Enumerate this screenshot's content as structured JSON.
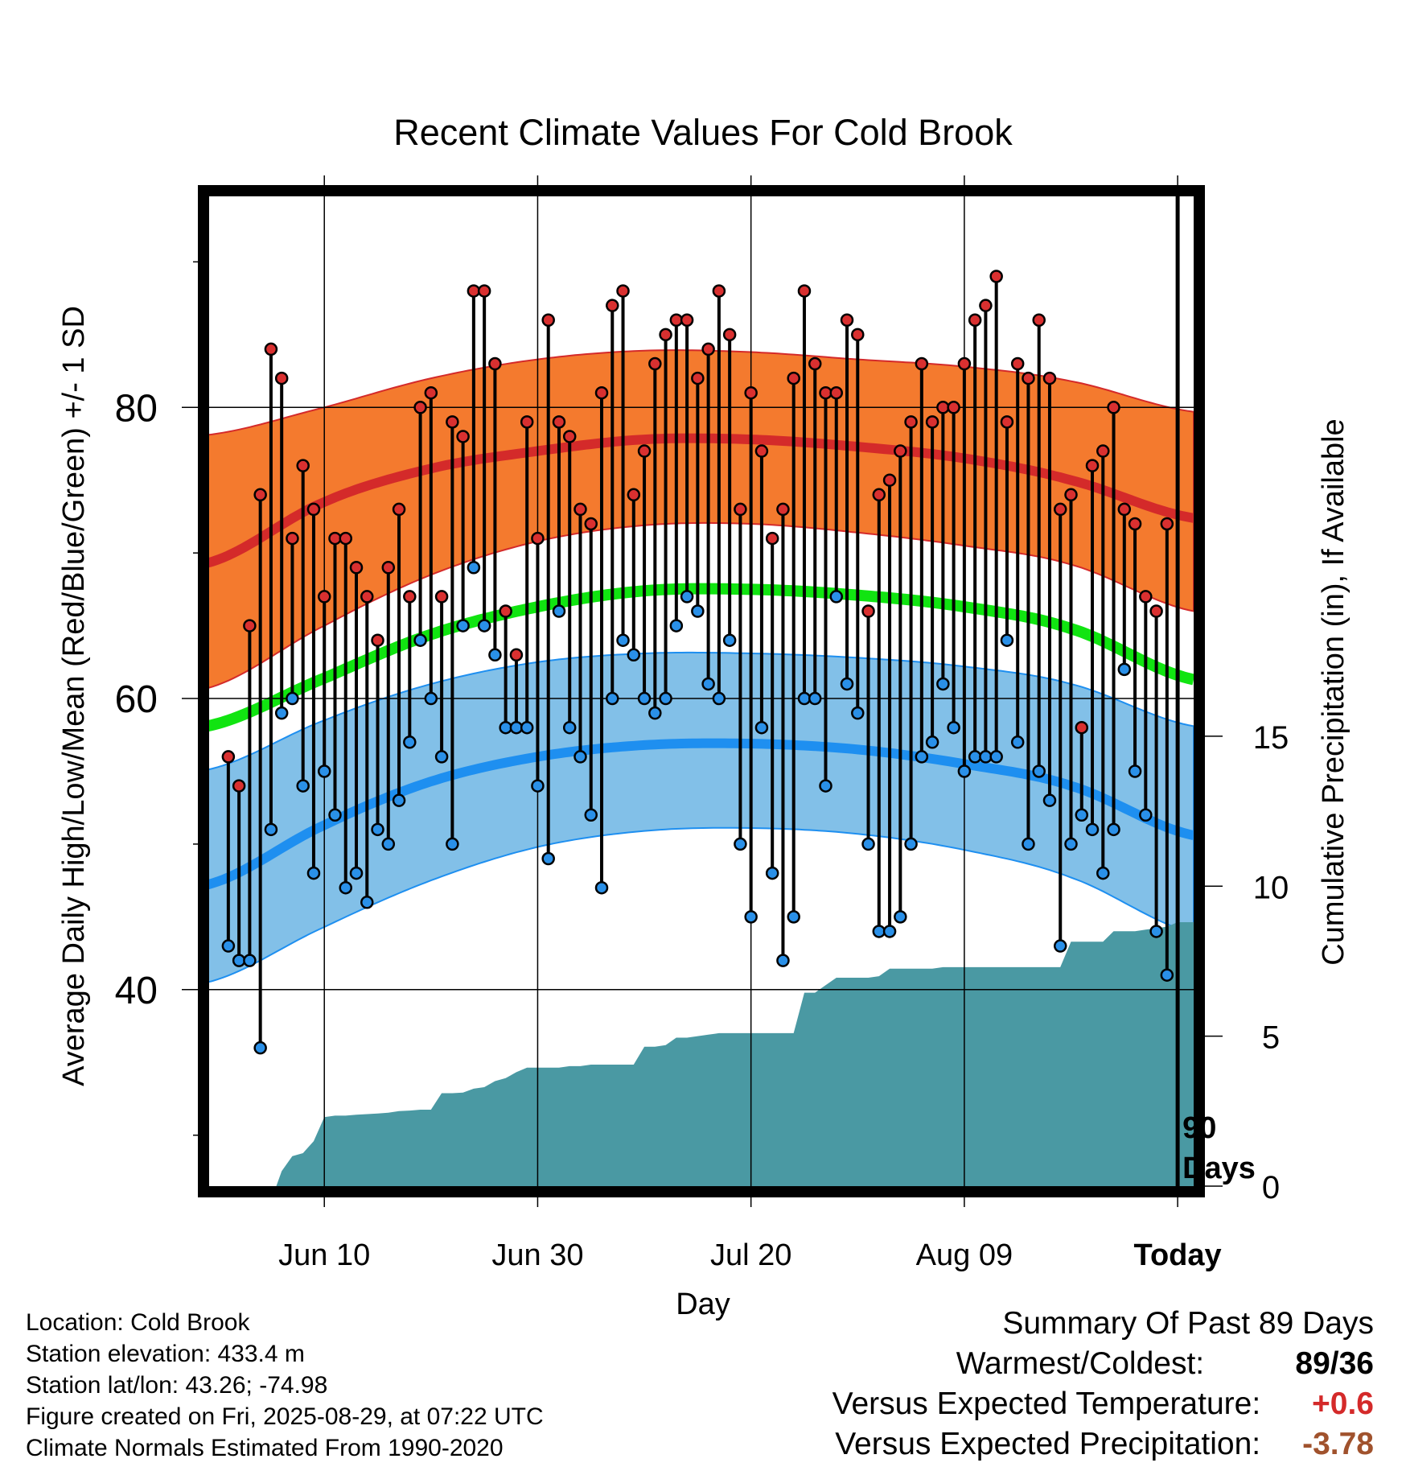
{
  "chart_data": {
    "type": "climate_range_with_cumulative_precipitation",
    "title": "Recent Climate Values For Cold Brook",
    "xlabel": "Day",
    "ylabel": "Average Daily High/Low/Mean (Red/Blue/Green) +/- 1 SD",
    "y2label": "Cumulative Precipitation (in), If Available",
    "x_ticks": [
      "Jun 10",
      "Jun 30",
      "Jul 20",
      "Aug 09",
      "Today"
    ],
    "x_tick_days": [
      10,
      30,
      50,
      70,
      90
    ],
    "xlim": [
      -0.8,
      91.5
    ],
    "ylim": [
      26.5,
      94.5
    ],
    "y_ticks": [
      40,
      60,
      80
    ],
    "y_minor_ticks": [
      30,
      50,
      70,
      90
    ],
    "y2lim": [
      0,
      33
    ],
    "y2_ticks": [
      0,
      5,
      10,
      15
    ],
    "grid": true,
    "today_line_day": 90,
    "today_label": "90\nDays",
    "normals": {
      "days": [
        -1,
        10,
        20,
        30,
        40,
        50,
        60,
        70,
        80,
        91.5
      ],
      "high_mean": [
        69.3,
        73.5,
        75.8,
        77.0,
        77.8,
        77.8,
        77.3,
        76.5,
        75.0,
        72.4
      ],
      "high_upper": [
        78.1,
        80.0,
        82.0,
        83.3,
        83.9,
        83.8,
        83.3,
        82.8,
        81.8,
        79.7
      ],
      "high_lower": [
        60.7,
        65.0,
        68.5,
        70.8,
        71.9,
        72.0,
        71.4,
        70.5,
        69.2,
        66.0
      ],
      "mean": [
        58.1,
        61.4,
        64.4,
        66.3,
        67.4,
        67.5,
        67.1,
        66.3,
        64.8,
        61.3
      ],
      "low_mean": [
        47.2,
        51.3,
        54.3,
        56.0,
        56.8,
        56.9,
        56.5,
        55.5,
        54.0,
        50.6
      ],
      "low_upper": [
        55.1,
        58.5,
        61.0,
        62.5,
        63.1,
        63.1,
        62.8,
        62.2,
        61.0,
        58.1
      ],
      "low_lower": [
        40.5,
        44.3,
        47.5,
        49.8,
        50.9,
        51.1,
        50.7,
        49.6,
        47.7,
        43.9
      ]
    },
    "daily": {
      "days": [
        1,
        2,
        3,
        4,
        5,
        6,
        7,
        8,
        9,
        10,
        11,
        12,
        13,
        14,
        15,
        16,
        17,
        18,
        19,
        20,
        21,
        22,
        23,
        24,
        25,
        26,
        27,
        28,
        29,
        30,
        31,
        32,
        33,
        34,
        35,
        36,
        37,
        38,
        39,
        40,
        41,
        42,
        43,
        44,
        45,
        46,
        47,
        48,
        49,
        50,
        51,
        52,
        53,
        54,
        55,
        56,
        57,
        58,
        59,
        60,
        61,
        62,
        63,
        64,
        65,
        66,
        67,
        68,
        69,
        70,
        71,
        72,
        73,
        74,
        75,
        76,
        77,
        78,
        79,
        80,
        81,
        82,
        83,
        84,
        85,
        86,
        87,
        88,
        89
      ],
      "highs": [
        56,
        54,
        65,
        74,
        84,
        82,
        71,
        76,
        73,
        67,
        71,
        71,
        69,
        67,
        64,
        69,
        73,
        67,
        80,
        81,
        67,
        79,
        78,
        88,
        88,
        83,
        66,
        63,
        79,
        71,
        86,
        79,
        78,
        73,
        72,
        81,
        87,
        88,
        74,
        77,
        83,
        85,
        86,
        86,
        82,
        84,
        88,
        85,
        73,
        81,
        77,
        71,
        73,
        82,
        88,
        83,
        81,
        81,
        86,
        85,
        66,
        74,
        75,
        77,
        79,
        83,
        79,
        80,
        80,
        83,
        86,
        87,
        89,
        79,
        83,
        82,
        86,
        82,
        73,
        74,
        58,
        76,
        77,
        80,
        73,
        72,
        67,
        66,
        72
      ],
      "lows": [
        43,
        42,
        42,
        36,
        51,
        59,
        60,
        54,
        48,
        55,
        52,
        47,
        48,
        46,
        51,
        50,
        53,
        57,
        64,
        60,
        56,
        50,
        65,
        69,
        65,
        63,
        58,
        58,
        58,
        54,
        49,
        66,
        58,
        56,
        52,
        47,
        60,
        64,
        63,
        60,
        59,
        60,
        65,
        67,
        66,
        61,
        60,
        64,
        50,
        45,
        58,
        48,
        42,
        45,
        60,
        60,
        54,
        67,
        61,
        59,
        50,
        44,
        44,
        45,
        50,
        56,
        57,
        61,
        58,
        55,
        56,
        56,
        56,
        64,
        57,
        50,
        55,
        53,
        43,
        50,
        52,
        51,
        48,
        51,
        62,
        55,
        52,
        44,
        41
      ]
    },
    "precip_cumulative": {
      "days": [
        5.5,
        6,
        7,
        8,
        9,
        10,
        11,
        12,
        13,
        14,
        15,
        16,
        17,
        18,
        19,
        20,
        21,
        22,
        23,
        24,
        25,
        26,
        27,
        28,
        29,
        30,
        31,
        32,
        33,
        34,
        35,
        36,
        37,
        38,
        39,
        40,
        41,
        42,
        43,
        44,
        45,
        46,
        47,
        48,
        49,
        50,
        51,
        52,
        53,
        54,
        55,
        56,
        57,
        58,
        59,
        60,
        61,
        62,
        63,
        64,
        65,
        66,
        67,
        68,
        69,
        70,
        71,
        72,
        73,
        74,
        75,
        76,
        77,
        78,
        79,
        80,
        81,
        82,
        83,
        84,
        85,
        86,
        87,
        88,
        89,
        90,
        91.5
      ],
      "values": [
        0,
        0.5,
        1.0,
        1.1,
        1.5,
        2.3,
        2.35,
        2.35,
        2.38,
        2.4,
        2.42,
        2.45,
        2.5,
        2.52,
        2.55,
        2.55,
        3.1,
        3.1,
        3.12,
        3.25,
        3.3,
        3.5,
        3.6,
        3.8,
        3.95,
        3.95,
        3.95,
        3.95,
        4.0,
        4.0,
        4.05,
        4.05,
        4.05,
        4.05,
        4.05,
        4.65,
        4.65,
        4.7,
        4.95,
        4.95,
        5.0,
        5.05,
        5.1,
        5.1,
        5.1,
        5.1,
        5.1,
        5.1,
        5.1,
        5.1,
        6.45,
        6.45,
        6.7,
        6.95,
        6.95,
        6.95,
        6.95,
        7.0,
        7.25,
        7.25,
        7.25,
        7.25,
        7.25,
        7.3,
        7.3,
        7.3,
        7.3,
        7.3,
        7.3,
        7.3,
        7.3,
        7.3,
        7.3,
        7.3,
        7.3,
        8.15,
        8.15,
        8.15,
        8.15,
        8.5,
        8.5,
        8.5,
        8.55,
        8.6,
        8.65,
        8.8,
        8.8
      ]
    },
    "colors": {
      "high_band": "#f47a2e",
      "high_line": "#d42a2a",
      "mean_line": "#11e411",
      "low_band": "#82c0e8",
      "low_line": "#1e8ff0",
      "precip": "#4a99a3",
      "high_dot": "#d93030",
      "low_dot": "#2a90e8"
    }
  },
  "info": {
    "location": "Location: Cold Brook",
    "elevation": "Station elevation: 433.4 m",
    "latlon": "Station lat/lon: 43.26; -74.98",
    "created": "Figure created on Fri, 2025-08-29, at 07:22 UTC",
    "normals": "Climate Normals Estimated From 1990-2020"
  },
  "summary": {
    "title": "Summary Of Past 89 Days",
    "warmest_label": "Warmest/Coldest:",
    "warmest_value": "89/36",
    "temp_label": "Versus Expected Temperature:",
    "temp_value": "+0.6",
    "temp_color": "#d42a2a",
    "precip_label": "Versus Expected Precipitation:",
    "precip_value": "-3.78",
    "precip_color": "#a0522d"
  }
}
